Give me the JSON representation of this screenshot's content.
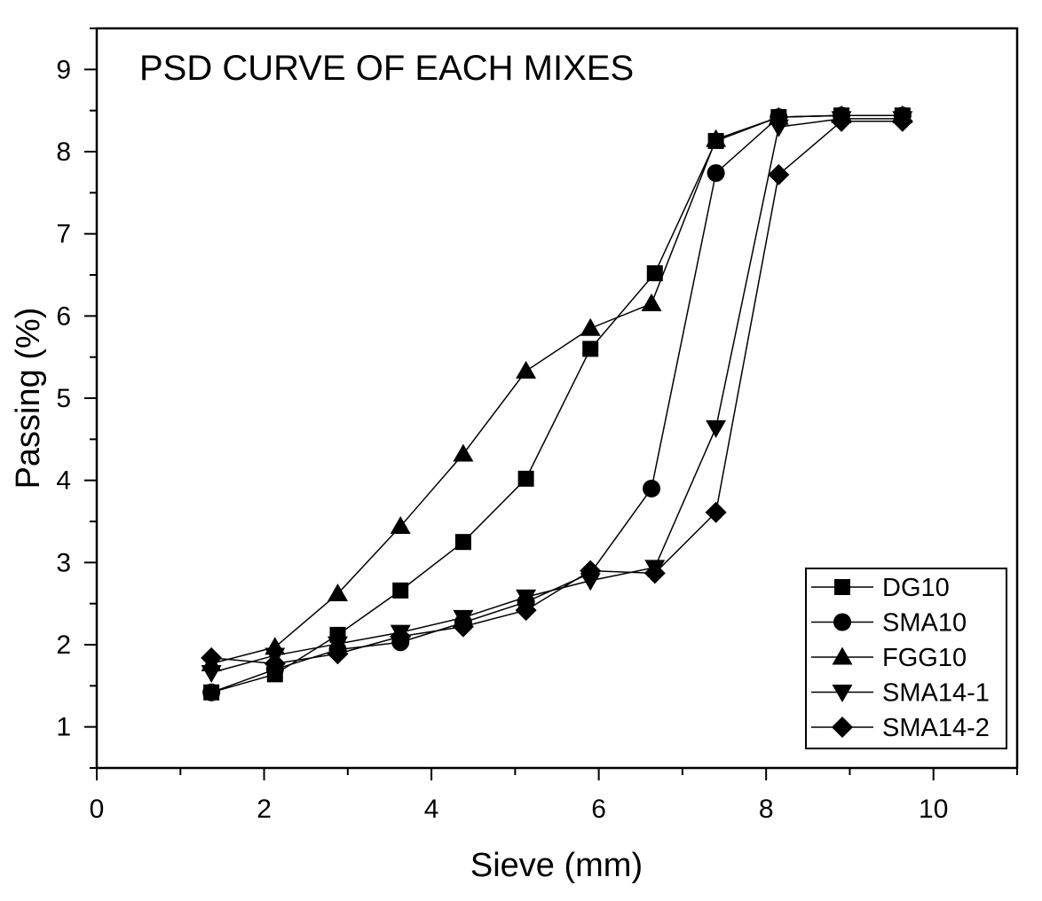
{
  "chart_data": {
    "type": "line",
    "title": "PSD CURVE OF EACH MIXES",
    "xlabel": "Sieve (mm)",
    "ylabel": "Passing (%)",
    "xlim": [
      0,
      11
    ],
    "ylim": [
      0.5,
      9.5
    ],
    "x_ticks": [
      "0",
      "2",
      "4",
      "6",
      "8",
      "10"
    ],
    "y_ticks": [
      "1",
      "2",
      "3",
      "4",
      "5",
      "6",
      "7",
      "8",
      "9"
    ],
    "grid": false,
    "legend_position": "bottom-right",
    "series": [
      {
        "name": "DG10",
        "marker": "square",
        "points": [
          [
            1.37,
            1.42
          ],
          [
            2.13,
            1.64
          ],
          [
            2.88,
            2.12
          ],
          [
            3.63,
            2.66
          ],
          [
            4.38,
            3.25
          ],
          [
            5.13,
            4.02
          ],
          [
            5.9,
            5.6
          ],
          [
            6.67,
            6.52
          ],
          [
            7.4,
            8.13
          ],
          [
            8.15,
            8.42
          ],
          [
            8.9,
            8.44
          ],
          [
            9.63,
            8.44
          ]
        ]
      },
      {
        "name": "SMA10",
        "marker": "circle",
        "points": [
          [
            1.37,
            1.42
          ],
          [
            2.13,
            1.7
          ],
          [
            2.88,
            1.94
          ],
          [
            3.63,
            2.03
          ],
          [
            4.38,
            2.27
          ],
          [
            5.13,
            2.52
          ],
          [
            5.9,
            2.87
          ],
          [
            6.63,
            3.9
          ],
          [
            7.4,
            7.74
          ],
          [
            8.15,
            8.42
          ],
          [
            8.9,
            8.44
          ],
          [
            9.63,
            8.44
          ]
        ]
      },
      {
        "name": "FGG10",
        "marker": "triangle-up",
        "points": [
          [
            1.37,
            1.77
          ],
          [
            2.13,
            1.97
          ],
          [
            2.88,
            2.62
          ],
          [
            3.63,
            3.44
          ],
          [
            4.38,
            4.32
          ],
          [
            5.13,
            5.33
          ],
          [
            5.9,
            5.85
          ],
          [
            6.63,
            6.15
          ],
          [
            7.4,
            8.15
          ],
          [
            8.15,
            8.42
          ],
          [
            8.9,
            8.44
          ],
          [
            9.63,
            8.44
          ]
        ]
      },
      {
        "name": "SMA14-1",
        "marker": "triangle-down",
        "points": [
          [
            1.37,
            1.66
          ],
          [
            2.13,
            1.87
          ],
          [
            2.88,
            2.01
          ],
          [
            3.63,
            2.15
          ],
          [
            4.38,
            2.33
          ],
          [
            5.13,
            2.58
          ],
          [
            5.9,
            2.78
          ],
          [
            6.67,
            2.94
          ],
          [
            7.4,
            4.64
          ],
          [
            8.15,
            8.3
          ],
          [
            8.9,
            8.4
          ],
          [
            9.63,
            8.4
          ]
        ]
      },
      {
        "name": "SMA14-2",
        "marker": "diamond",
        "points": [
          [
            1.37,
            1.84
          ],
          [
            2.13,
            1.77
          ],
          [
            2.88,
            1.89
          ],
          [
            3.63,
            2.1
          ],
          [
            4.38,
            2.22
          ],
          [
            5.13,
            2.42
          ],
          [
            5.9,
            2.9
          ],
          [
            6.67,
            2.87
          ],
          [
            7.4,
            3.61
          ],
          [
            8.15,
            7.72
          ],
          [
            8.9,
            8.37
          ],
          [
            9.63,
            8.37
          ]
        ]
      }
    ]
  }
}
